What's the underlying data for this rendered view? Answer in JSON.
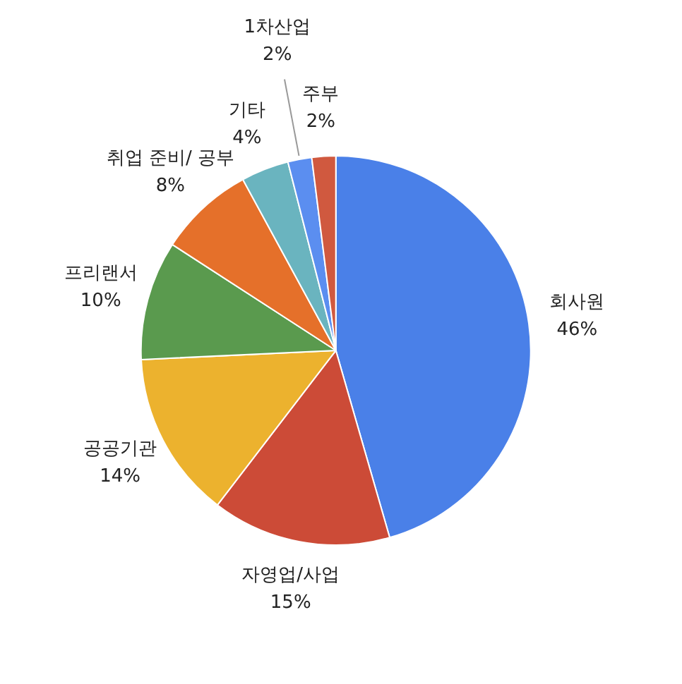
{
  "chart_data": {
    "type": "pie",
    "categories": [
      "회사원",
      "자영업/사업",
      "공공기관",
      "프리랜서",
      "취업 준비/ 공부",
      "기타",
      "1차산업",
      "주부"
    ],
    "values": [
      46,
      15,
      14,
      10,
      8,
      4,
      2,
      2
    ],
    "value_labels": [
      "46%",
      "15%",
      "14%",
      "10%",
      "8%",
      "4%",
      "2%",
      "2%"
    ],
    "colors": [
      "#4a80e8",
      "#cc4b37",
      "#ecb22e",
      "#5a9a4e",
      "#e5702a",
      "#6ab4bf",
      "#5b8ef0",
      "#d0593f"
    ],
    "legend": false
  }
}
